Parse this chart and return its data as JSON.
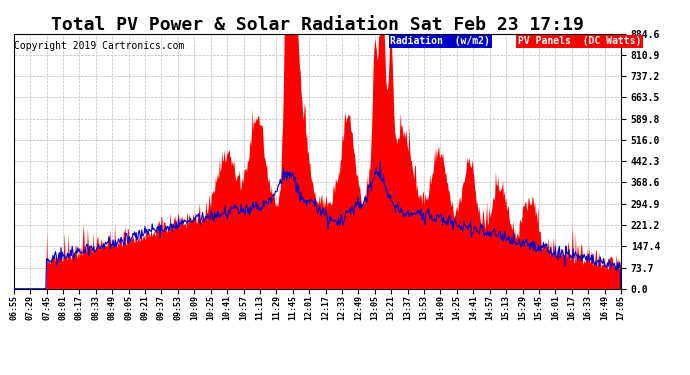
{
  "title": "Total PV Power & Solar Radiation Sat Feb 23 17:19",
  "copyright": "Copyright 2019 Cartronics.com",
  "legend_radiation": "Radiation  (w/m2)",
  "legend_pv": "PV Panels  (DC Watts)",
  "ymin": 0.0,
  "ymax": 884.6,
  "yticks": [
    0.0,
    73.7,
    147.4,
    221.2,
    294.9,
    368.6,
    442.3,
    516.0,
    589.8,
    663.5,
    737.2,
    810.9,
    884.6
  ],
  "background_color": "#ffffff",
  "grid_color": "#bbbbbb",
  "pv_color": "#ff0000",
  "radiation_color": "#0000cc",
  "title_fontsize": 13,
  "copyright_fontsize": 7,
  "xtick_labels": [
    "06:55",
    "07:29",
    "07:45",
    "08:01",
    "08:17",
    "08:33",
    "08:49",
    "09:05",
    "09:21",
    "09:37",
    "09:53",
    "10:09",
    "10:25",
    "10:41",
    "10:57",
    "11:13",
    "11:29",
    "11:45",
    "12:01",
    "12:17",
    "12:33",
    "12:49",
    "13:05",
    "13:21",
    "13:37",
    "13:53",
    "14:09",
    "14:25",
    "14:41",
    "14:57",
    "15:13",
    "15:29",
    "15:45",
    "16:01",
    "16:17",
    "16:33",
    "16:49",
    "17:05"
  ],
  "num_points": 760
}
